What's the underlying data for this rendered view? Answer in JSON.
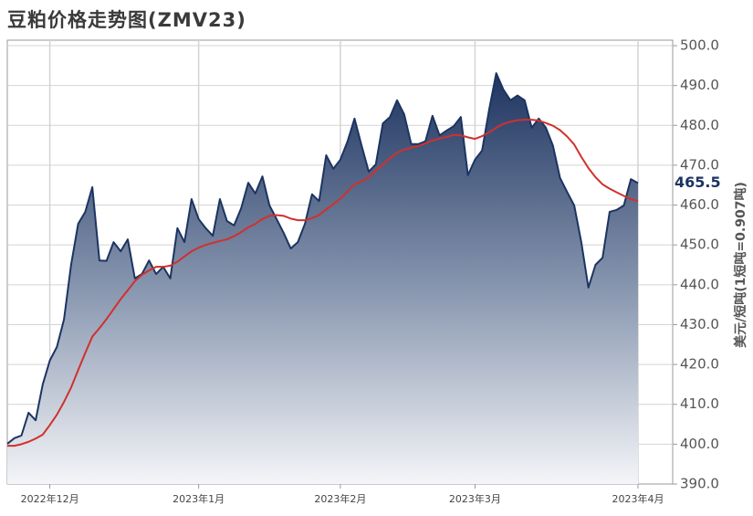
{
  "chart_data": {
    "type": "area-line",
    "title": "豆粕价格走势图(ZMV23)",
    "y_label": "美元/短吨(1短吨=0.907吨)",
    "y_axis_side": "right",
    "grid": true,
    "categories": [
      null,
      null,
      null,
      null,
      null,
      null,
      "2022年12月",
      null,
      null,
      null,
      null,
      null,
      null,
      null,
      null,
      null,
      null,
      null,
      null,
      null,
      null,
      null,
      null,
      null,
      null,
      null,
      null,
      "2023年1月",
      null,
      null,
      null,
      null,
      null,
      null,
      null,
      null,
      null,
      null,
      null,
      null,
      null,
      null,
      null,
      null,
      null,
      null,
      null,
      "2023年2月",
      null,
      null,
      null,
      null,
      null,
      null,
      null,
      null,
      null,
      null,
      null,
      null,
      null,
      null,
      null,
      null,
      null,
      null,
      "2023年3月",
      null,
      null,
      null,
      null,
      null,
      null,
      null,
      null,
      null,
      null,
      null,
      null,
      null,
      null,
      null,
      null,
      null,
      null,
      null,
      null,
      null,
      null,
      "2023年4月"
    ],
    "ylim": [
      390,
      500
    ],
    "yticks": [
      {
        "value": 390,
        "label": "390.0"
      },
      {
        "value": 400,
        "label": "400.0"
      },
      {
        "value": 410,
        "label": "410.0"
      },
      {
        "value": 420,
        "label": "420.0"
      },
      {
        "value": 430,
        "label": "430.0"
      },
      {
        "value": 440,
        "label": "440.0"
      },
      {
        "value": 450,
        "label": "450.0"
      },
      {
        "value": 460,
        "label": "460.0"
      },
      {
        "value": 470,
        "label": "470.0"
      },
      {
        "value": 480,
        "label": "480.0"
      },
      {
        "value": 490,
        "label": "490.0"
      },
      {
        "value": 500,
        "label": "500.0"
      }
    ],
    "series": [
      {
        "color": "#1c3461",
        "fill": true,
        "last_label": true,
        "values": [
          400.1,
          401.5,
          402.2,
          407.9,
          406,
          415,
          421,
          424.4,
          431.3,
          445,
          455.3,
          458.3,
          464.5,
          446.1,
          446,
          450.7,
          448.4,
          451.4,
          441.6,
          442.7,
          446.1,
          442.7,
          444.5,
          441.6,
          454.2,
          450.7,
          461.5,
          456.5,
          454.2,
          452.3,
          461.5,
          456,
          454.9,
          459.2,
          465.6,
          462.9,
          467.2,
          459.9,
          456.5,
          453,
          449.1,
          450.7,
          455.3,
          462.7,
          461,
          472.5,
          469.1,
          471.4,
          475.9,
          481.7,
          474.9,
          468.4,
          470.2,
          480.5,
          482.1,
          486.3,
          482.8,
          475.3,
          475.3,
          476,
          482.4,
          477.5,
          478.7,
          479.8,
          482.1,
          467.5,
          471.4,
          473.7,
          484,
          493.1,
          489,
          486.3,
          487.5,
          486.3,
          479.4,
          481.7,
          479.4,
          474.9,
          466.8,
          463.3,
          459.9,
          450.7,
          439.3,
          445,
          446.8,
          458.3,
          458.8,
          459.9,
          466.5,
          465.5
        ]
      },
      {
        "color": "#d0312d",
        "fill": false,
        "last_label": false,
        "values": [
          399.6,
          399.6,
          400,
          400.6,
          401.4,
          402.4,
          404.8,
          407.4,
          410.6,
          414.2,
          418.6,
          422.9,
          427,
          429.1,
          431.4,
          433.9,
          436.4,
          438.6,
          440.9,
          442.5,
          443.6,
          444.5,
          444.5,
          444.8,
          445.8,
          447.1,
          448.4,
          449.3,
          450,
          450.5,
          451,
          451.4,
          452.2,
          453.2,
          454.4,
          455.3,
          456.5,
          457.3,
          457.5,
          457.3,
          456.6,
          456.2,
          456.2,
          456.7,
          457.5,
          458.9,
          460.2,
          461.6,
          463.4,
          465.2,
          465.9,
          467,
          468.7,
          470.1,
          471.8,
          473.1,
          473.9,
          474.4,
          474.8,
          475.5,
          476.2,
          476.7,
          477.1,
          477.6,
          477.5,
          477,
          476.6,
          477.3,
          478.3,
          479.4,
          480.4,
          480.9,
          481.3,
          481.4,
          481.4,
          481.2,
          480.6,
          479.9,
          478.8,
          477.2,
          475.2,
          472.1,
          469.3,
          467,
          465.2,
          464.1,
          463.2,
          462.3,
          461.5,
          461
        ]
      }
    ]
  }
}
